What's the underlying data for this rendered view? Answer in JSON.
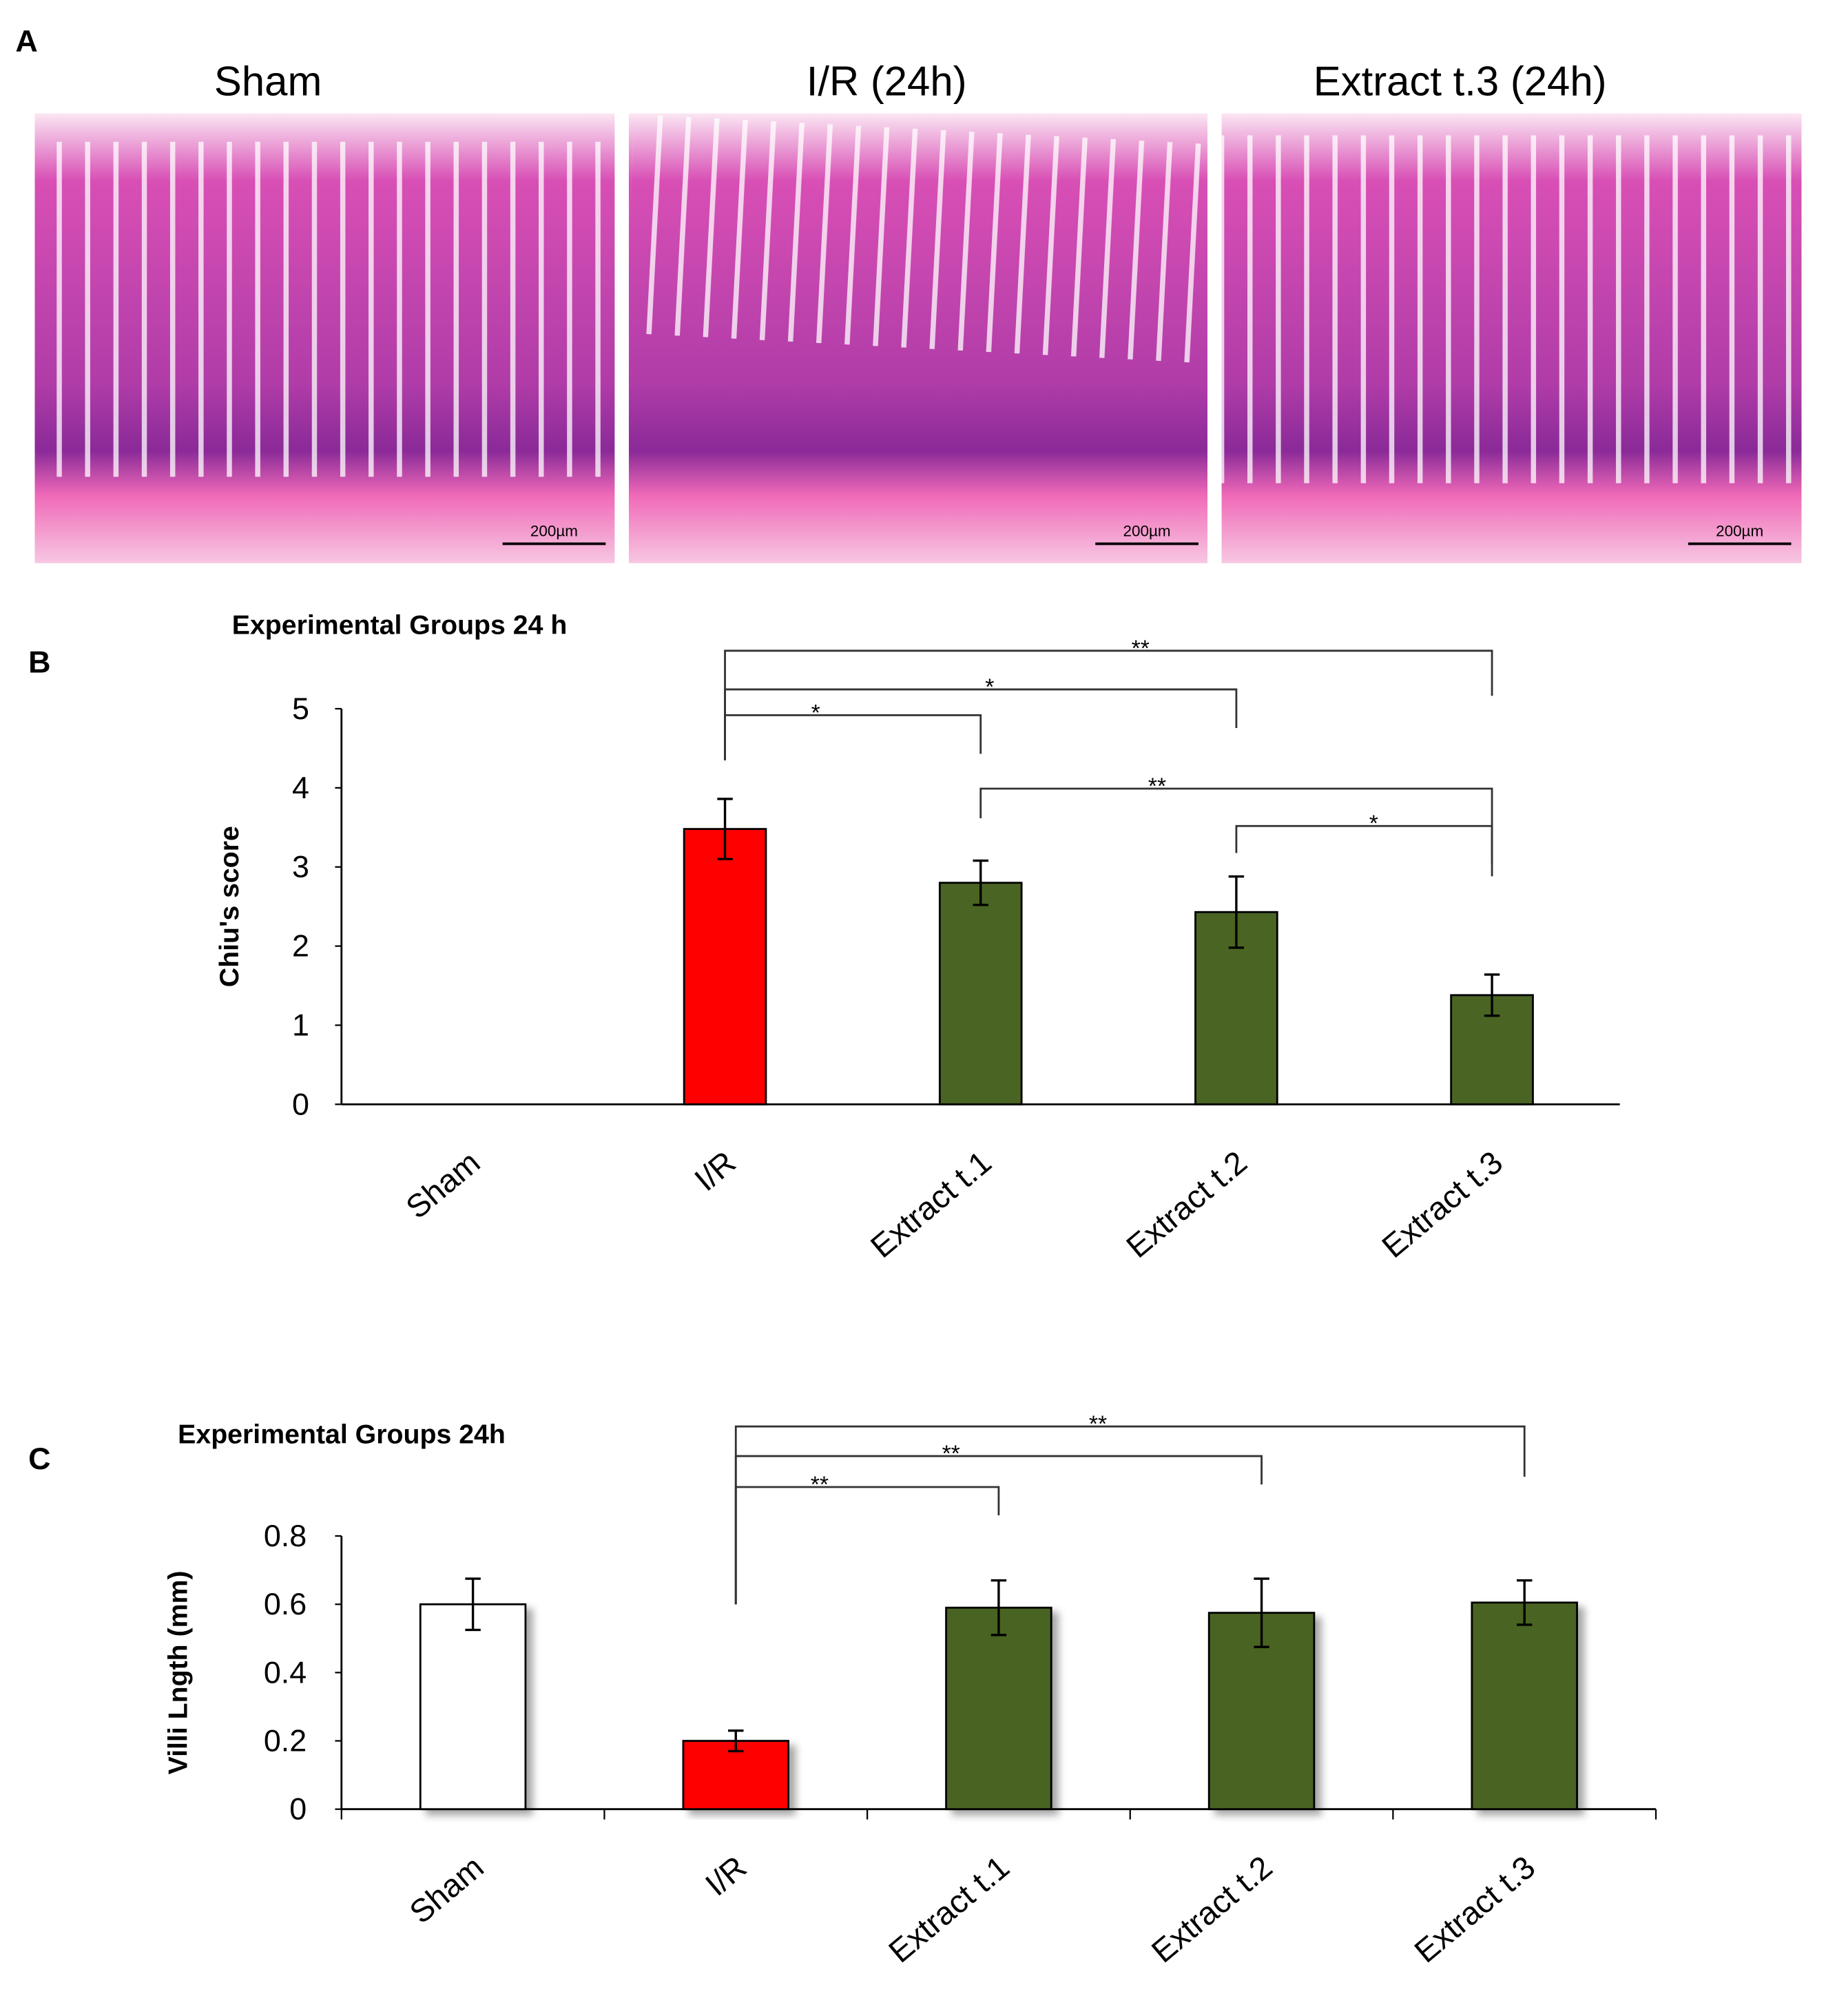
{
  "panel_labels": [
    "A",
    "B",
    "C"
  ],
  "panel_a": {
    "titles": [
      "Sham",
      "I/R (24h)",
      "Extract t.3 (24h)"
    ],
    "scale_bar": [
      "200µm",
      "200µm",
      "200µm"
    ]
  },
  "chart_data": [
    {
      "type": "bar",
      "title": "Experimental  Groups 24 h",
      "ylabel": "Chiu's score",
      "categories": [
        "Sham",
        "I/R",
        "Extract t.1",
        "Extract t.2",
        "Extract t.3"
      ],
      "values": [
        0,
        3.48,
        2.8,
        2.43,
        1.38
      ],
      "errors": [
        null,
        0.38,
        0.28,
        0.45,
        0.26
      ],
      "colors": [
        "#ffffff",
        "#ff0000",
        "#4a6423",
        "#4a6423",
        "#4a6423"
      ],
      "ylim": [
        0,
        5
      ],
      "yticks": [
        0,
        1,
        2,
        3,
        4,
        5
      ],
      "significance": [
        {
          "from": 1,
          "to": 2,
          "label": "*"
        },
        {
          "from": 1,
          "to": 3,
          "label": "*"
        },
        {
          "from": 1,
          "to": 4,
          "label": "**"
        },
        {
          "from": 2,
          "to": 4,
          "label": "**"
        },
        {
          "from": 3,
          "to": 4,
          "label": "*"
        }
      ]
    },
    {
      "type": "bar",
      "title": "Experimental  Groups 24h",
      "ylabel": "Villi Lngth (mm)",
      "categories": [
        "Sham",
        "I/R",
        "Extract t.1",
        "Extract t.2",
        "Extract t.3"
      ],
      "values": [
        0.6,
        0.2,
        0.59,
        0.575,
        0.605
      ],
      "errors": [
        0.075,
        0.03,
        0.08,
        0.1,
        0.065
      ],
      "colors": [
        "#ffffff",
        "#ff0000",
        "#4a6423",
        "#4a6423",
        "#4a6423"
      ],
      "ylim": [
        0,
        0.8
      ],
      "yticks": [
        0,
        0.2,
        0.4,
        0.6,
        0.8
      ],
      "significance": [
        {
          "from": 1,
          "to": 2,
          "label": "**"
        },
        {
          "from": 1,
          "to": 3,
          "label": "**"
        },
        {
          "from": 1,
          "to": 4,
          "label": "**"
        }
      ]
    }
  ]
}
